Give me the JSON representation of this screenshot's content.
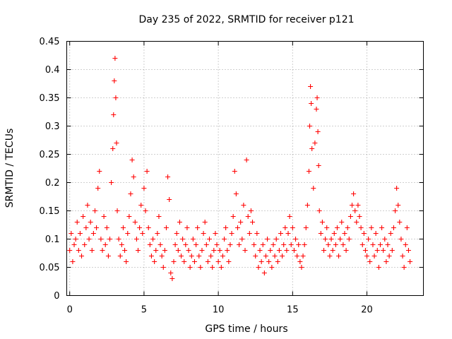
{
  "chart_data": {
    "type": "scatter",
    "title": "Day 235 of 2022, SRMTID for receiver p121",
    "xlabel": "GPS time / hours",
    "ylabel": "SRMTID / TECUs",
    "xlim": [
      -0.2,
      23.8
    ],
    "ylim": [
      0,
      0.45
    ],
    "xticks": [
      0,
      5,
      10,
      15,
      20
    ],
    "xtick_labels": [
      "0",
      "5",
      "10",
      "15",
      "20"
    ],
    "yticks": [
      0,
      0.05,
      0.1,
      0.15,
      0.2,
      0.25,
      0.3,
      0.35,
      0.4,
      0.45
    ],
    "ytick_labels": [
      "0",
      "0.05",
      "0.1",
      "0.15",
      "0.2",
      "0.25",
      "0.3",
      "0.35",
      "0.4",
      "0.45"
    ],
    "grid": true,
    "marker": "+",
    "color": "#ff0000",
    "series": [
      {
        "name": "SRMTID",
        "points": [
          [
            0.0,
            0.08
          ],
          [
            0.1,
            0.11
          ],
          [
            0.2,
            0.06
          ],
          [
            0.3,
            0.09
          ],
          [
            0.4,
            0.1
          ],
          [
            0.5,
            0.13
          ],
          [
            0.6,
            0.08
          ],
          [
            0.7,
            0.11
          ],
          [
            0.8,
            0.07
          ],
          [
            0.9,
            0.14
          ],
          [
            1.0,
            0.09
          ],
          [
            1.1,
            0.12
          ],
          [
            1.2,
            0.16
          ],
          [
            1.3,
            0.1
          ],
          [
            1.4,
            0.13
          ],
          [
            1.5,
            0.08
          ],
          [
            1.6,
            0.11
          ],
          [
            1.7,
            0.15
          ],
          [
            1.8,
            0.12
          ],
          [
            1.9,
            0.19
          ],
          [
            2.0,
            0.22
          ],
          [
            2.1,
            0.1
          ],
          [
            2.2,
            0.08
          ],
          [
            2.3,
            0.14
          ],
          [
            2.4,
            0.09
          ],
          [
            2.5,
            0.12
          ],
          [
            2.6,
            0.07
          ],
          [
            2.7,
            0.1
          ],
          [
            2.8,
            0.2
          ],
          [
            2.9,
            0.26
          ],
          [
            2.95,
            0.32
          ],
          [
            3.0,
            0.38
          ],
          [
            3.05,
            0.42
          ],
          [
            3.1,
            0.35
          ],
          [
            3.15,
            0.27
          ],
          [
            3.2,
            0.15
          ],
          [
            3.3,
            0.1
          ],
          [
            3.4,
            0.07
          ],
          [
            3.5,
            0.09
          ],
          [
            3.6,
            0.12
          ],
          [
            3.7,
            0.08
          ],
          [
            3.8,
            0.06
          ],
          [
            3.9,
            0.11
          ],
          [
            4.0,
            0.14
          ],
          [
            4.1,
            0.18
          ],
          [
            4.2,
            0.24
          ],
          [
            4.3,
            0.21
          ],
          [
            4.4,
            0.13
          ],
          [
            4.5,
            0.1
          ],
          [
            4.6,
            0.08
          ],
          [
            4.7,
            0.12
          ],
          [
            4.8,
            0.16
          ],
          [
            4.9,
            0.11
          ],
          [
            5.0,
            0.19
          ],
          [
            5.1,
            0.15
          ],
          [
            5.2,
            0.22
          ],
          [
            5.3,
            0.12
          ],
          [
            5.4,
            0.09
          ],
          [
            5.5,
            0.07
          ],
          [
            5.6,
            0.1
          ],
          [
            5.7,
            0.06
          ],
          [
            5.8,
            0.08
          ],
          [
            5.9,
            0.11
          ],
          [
            6.0,
            0.14
          ],
          [
            6.1,
            0.09
          ],
          [
            6.2,
            0.07
          ],
          [
            6.3,
            0.05
          ],
          [
            6.4,
            0.08
          ],
          [
            6.5,
            0.12
          ],
          [
            6.6,
            0.21
          ],
          [
            6.7,
            0.17
          ],
          [
            6.8,
            0.04
          ],
          [
            6.9,
            0.03
          ],
          [
            7.0,
            0.06
          ],
          [
            7.1,
            0.09
          ],
          [
            7.2,
            0.11
          ],
          [
            7.3,
            0.08
          ],
          [
            7.4,
            0.13
          ],
          [
            7.5,
            0.07
          ],
          [
            7.6,
            0.1
          ],
          [
            7.7,
            0.06
          ],
          [
            7.8,
            0.09
          ],
          [
            7.9,
            0.12
          ],
          [
            8.0,
            0.08
          ],
          [
            8.1,
            0.05
          ],
          [
            8.2,
            0.07
          ],
          [
            8.3,
            0.1
          ],
          [
            8.4,
            0.06
          ],
          [
            8.5,
            0.09
          ],
          [
            8.6,
            0.12
          ],
          [
            8.7,
            0.07
          ],
          [
            8.8,
            0.05
          ],
          [
            8.9,
            0.08
          ],
          [
            9.0,
            0.11
          ],
          [
            9.1,
            0.13
          ],
          [
            9.2,
            0.09
          ],
          [
            9.3,
            0.06
          ],
          [
            9.4,
            0.1
          ],
          [
            9.5,
            0.07
          ],
          [
            9.6,
            0.05
          ],
          [
            9.7,
            0.08
          ],
          [
            9.8,
            0.11
          ],
          [
            9.9,
            0.09
          ],
          [
            10.0,
            0.06
          ],
          [
            10.1,
            0.08
          ],
          [
            10.2,
            0.05
          ],
          [
            10.3,
            0.07
          ],
          [
            10.4,
            0.1
          ],
          [
            10.5,
            0.12
          ],
          [
            10.6,
            0.08
          ],
          [
            10.7,
            0.06
          ],
          [
            10.8,
            0.09
          ],
          [
            10.9,
            0.11
          ],
          [
            11.0,
            0.14
          ],
          [
            11.1,
            0.22
          ],
          [
            11.2,
            0.18
          ],
          [
            11.3,
            0.12
          ],
          [
            11.4,
            0.09
          ],
          [
            11.5,
            0.13
          ],
          [
            11.6,
            0.1
          ],
          [
            11.7,
            0.16
          ],
          [
            11.8,
            0.08
          ],
          [
            11.9,
            0.24
          ],
          [
            12.0,
            0.14
          ],
          [
            12.1,
            0.11
          ],
          [
            12.2,
            0.15
          ],
          [
            12.3,
            0.13
          ],
          [
            12.4,
            0.09
          ],
          [
            12.5,
            0.07
          ],
          [
            12.6,
            0.11
          ],
          [
            12.7,
            0.05
          ],
          [
            12.8,
            0.08
          ],
          [
            12.9,
            0.06
          ],
          [
            13.0,
            0.09
          ],
          [
            13.1,
            0.04
          ],
          [
            13.2,
            0.07
          ],
          [
            13.3,
            0.1
          ],
          [
            13.4,
            0.06
          ],
          [
            13.5,
            0.08
          ],
          [
            13.6,
            0.05
          ],
          [
            13.7,
            0.09
          ],
          [
            13.8,
            0.07
          ],
          [
            13.9,
            0.1
          ],
          [
            14.0,
            0.06
          ],
          [
            14.1,
            0.08
          ],
          [
            14.2,
            0.11
          ],
          [
            14.3,
            0.07
          ],
          [
            14.4,
            0.09
          ],
          [
            14.5,
            0.12
          ],
          [
            14.6,
            0.08
          ],
          [
            14.7,
            0.11
          ],
          [
            14.8,
            0.14
          ],
          [
            14.9,
            0.09
          ],
          [
            15.0,
            0.12
          ],
          [
            15.1,
            0.08
          ],
          [
            15.2,
            0.1
          ],
          [
            15.3,
            0.07
          ],
          [
            15.4,
            0.09
          ],
          [
            15.5,
            0.06
          ],
          [
            15.6,
            0.05
          ],
          [
            15.7,
            0.07
          ],
          [
            15.8,
            0.09
          ],
          [
            15.9,
            0.12
          ],
          [
            16.0,
            0.16
          ],
          [
            16.1,
            0.22
          ],
          [
            16.15,
            0.3
          ],
          [
            16.2,
            0.37
          ],
          [
            16.25,
            0.34
          ],
          [
            16.3,
            0.26
          ],
          [
            16.4,
            0.19
          ],
          [
            16.5,
            0.27
          ],
          [
            16.6,
            0.33
          ],
          [
            16.65,
            0.35
          ],
          [
            16.7,
            0.29
          ],
          [
            16.75,
            0.23
          ],
          [
            16.8,
            0.15
          ],
          [
            16.9,
            0.11
          ],
          [
            17.0,
            0.13
          ],
          [
            17.1,
            0.08
          ],
          [
            17.2,
            0.1
          ],
          [
            17.3,
            0.12
          ],
          [
            17.4,
            0.09
          ],
          [
            17.5,
            0.07
          ],
          [
            17.6,
            0.1
          ],
          [
            17.7,
            0.08
          ],
          [
            17.8,
            0.11
          ],
          [
            17.9,
            0.09
          ],
          [
            18.0,
            0.12
          ],
          [
            18.1,
            0.07
          ],
          [
            18.2,
            0.1
          ],
          [
            18.3,
            0.13
          ],
          [
            18.4,
            0.09
          ],
          [
            18.5,
            0.11
          ],
          [
            18.6,
            0.08
          ],
          [
            18.7,
            0.12
          ],
          [
            18.8,
            0.1
          ],
          [
            18.9,
            0.14
          ],
          [
            19.0,
            0.16
          ],
          [
            19.1,
            0.18
          ],
          [
            19.2,
            0.15
          ],
          [
            19.3,
            0.13
          ],
          [
            19.4,
            0.16
          ],
          [
            19.5,
            0.14
          ],
          [
            19.6,
            0.12
          ],
          [
            19.7,
            0.09
          ],
          [
            19.8,
            0.11
          ],
          [
            19.9,
            0.08
          ],
          [
            20.0,
            0.07
          ],
          [
            20.1,
            0.1
          ],
          [
            20.2,
            0.06
          ],
          [
            20.3,
            0.12
          ],
          [
            20.4,
            0.09
          ],
          [
            20.5,
            0.07
          ],
          [
            20.6,
            0.11
          ],
          [
            20.7,
            0.08
          ],
          [
            20.8,
            0.05
          ],
          [
            20.9,
            0.09
          ],
          [
            21.0,
            0.12
          ],
          [
            21.1,
            0.08
          ],
          [
            21.2,
            0.1
          ],
          [
            21.3,
            0.06
          ],
          [
            21.4,
            0.09
          ],
          [
            21.5,
            0.07
          ],
          [
            21.6,
            0.11
          ],
          [
            21.7,
            0.08
          ],
          [
            21.8,
            0.12
          ],
          [
            21.9,
            0.15
          ],
          [
            22.0,
            0.19
          ],
          [
            22.1,
            0.16
          ],
          [
            22.2,
            0.13
          ],
          [
            22.3,
            0.1
          ],
          [
            22.4,
            0.07
          ],
          [
            22.5,
            0.05
          ],
          [
            22.6,
            0.09
          ],
          [
            22.7,
            0.12
          ],
          [
            22.8,
            0.08
          ],
          [
            22.9,
            0.06
          ]
        ]
      }
    ]
  }
}
